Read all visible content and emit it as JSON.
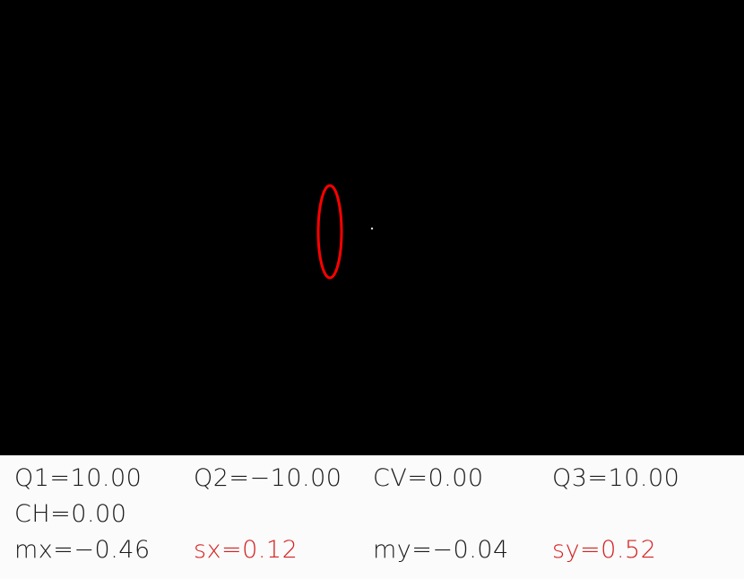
{
  "viewport": {
    "background": "#000000",
    "ellipse_color": "#ff0000",
    "point_color": "#dddddd"
  },
  "readout": {
    "Q1": "Q1=10.00",
    "Q2": "Q2=−10.00",
    "CV": "CV=0.00",
    "Q3": "Q3=10.00",
    "CH": "CH=0.00",
    "mx": "mx=−0.46",
    "sx": "sx=0.12",
    "my": "my=−0.04",
    "sy": "sy=0.52",
    "highlight_color": "#d42020"
  }
}
